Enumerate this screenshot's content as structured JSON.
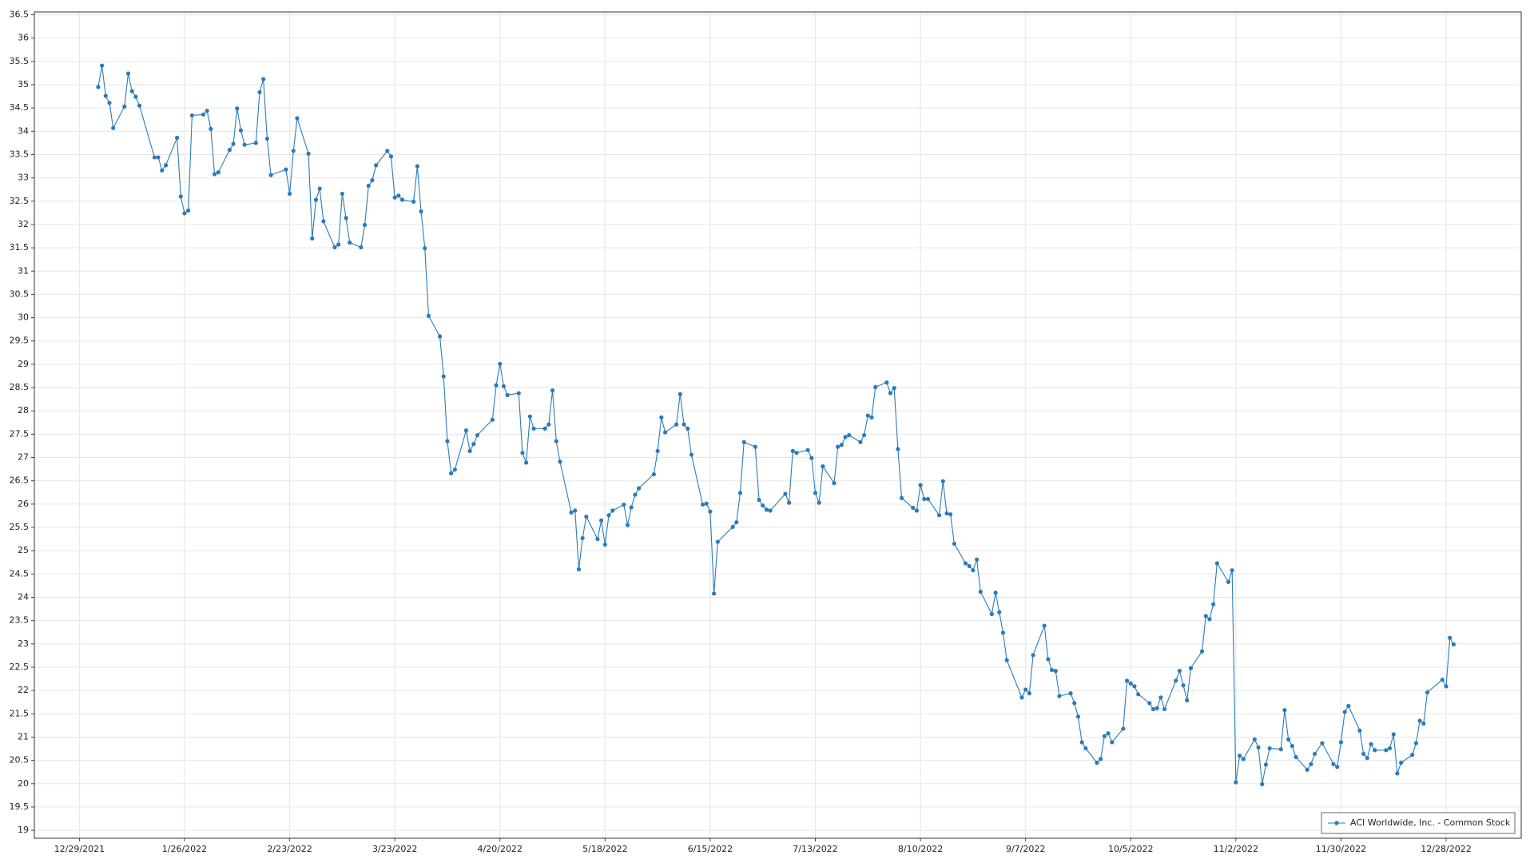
{
  "chart_data": {
    "type": "line",
    "x": [
      "1/3/2022",
      "1/4/2022",
      "1/5/2022",
      "1/6/2022",
      "1/7/2022",
      "1/10/2022",
      "1/11/2022",
      "1/12/2022",
      "1/13/2022",
      "1/14/2022",
      "1/18/2022",
      "1/19/2022",
      "1/20/2022",
      "1/21/2022",
      "1/24/2022",
      "1/25/2022",
      "1/26/2022",
      "1/27/2022",
      "1/28/2022",
      "1/31/2022",
      "2/1/2022",
      "2/2/2022",
      "2/3/2022",
      "2/4/2022",
      "2/7/2022",
      "2/8/2022",
      "2/9/2022",
      "2/10/2022",
      "2/11/2022",
      "2/14/2022",
      "2/15/2022",
      "2/16/2022",
      "2/17/2022",
      "2/18/2022",
      "2/22/2022",
      "2/23/2022",
      "2/24/2022",
      "2/25/2022",
      "2/28/2022",
      "3/1/2022",
      "3/2/2022",
      "3/3/2022",
      "3/4/2022",
      "3/7/2022",
      "3/8/2022",
      "3/9/2022",
      "3/10/2022",
      "3/11/2022",
      "3/14/2022",
      "3/15/2022",
      "3/16/2022",
      "3/17/2022",
      "3/18/2022",
      "3/21/2022",
      "3/22/2022",
      "3/23/2022",
      "3/24/2022",
      "3/25/2022",
      "3/28/2022",
      "3/29/2022",
      "3/30/2022",
      "3/31/2022",
      "4/1/2022",
      "4/4/2022",
      "4/5/2022",
      "4/6/2022",
      "4/7/2022",
      "4/8/2022",
      "4/11/2022",
      "4/12/2022",
      "4/13/2022",
      "4/14/2022",
      "4/18/2022",
      "4/19/2022",
      "4/20/2022",
      "4/21/2022",
      "4/22/2022",
      "4/25/2022",
      "4/26/2022",
      "4/27/2022",
      "4/28/2022",
      "4/29/2022",
      "5/2/2022",
      "5/3/2022",
      "5/4/2022",
      "5/5/2022",
      "5/6/2022",
      "5/9/2022",
      "5/10/2022",
      "5/11/2022",
      "5/12/2022",
      "5/13/2022",
      "5/16/2022",
      "5/17/2022",
      "5/18/2022",
      "5/19/2022",
      "5/20/2022",
      "5/23/2022",
      "5/24/2022",
      "5/25/2022",
      "5/26/2022",
      "5/27/2022",
      "5/31/2022",
      "6/1/2022",
      "6/2/2022",
      "6/3/2022",
      "6/6/2022",
      "6/7/2022",
      "6/8/2022",
      "6/9/2022",
      "6/10/2022",
      "6/13/2022",
      "6/14/2022",
      "6/15/2022",
      "6/16/2022",
      "6/17/2022",
      "6/21/2022",
      "6/22/2022",
      "6/23/2022",
      "6/24/2022",
      "6/27/2022",
      "6/28/2022",
      "6/29/2022",
      "6/30/2022",
      "7/1/2022",
      "7/5/2022",
      "7/6/2022",
      "7/7/2022",
      "7/8/2022",
      "7/11/2022",
      "7/12/2022",
      "7/13/2022",
      "7/14/2022",
      "7/15/2022",
      "7/18/2022",
      "7/19/2022",
      "7/20/2022",
      "7/21/2022",
      "7/22/2022",
      "7/25/2022",
      "7/26/2022",
      "7/27/2022",
      "7/28/2022",
      "7/29/2022",
      "8/1/2022",
      "8/2/2022",
      "8/3/2022",
      "8/4/2022",
      "8/5/2022",
      "8/8/2022",
      "8/9/2022",
      "8/10/2022",
      "8/11/2022",
      "8/12/2022",
      "8/15/2022",
      "8/16/2022",
      "8/17/2022",
      "8/18/2022",
      "8/19/2022",
      "8/22/2022",
      "8/23/2022",
      "8/24/2022",
      "8/25/2022",
      "8/26/2022",
      "8/29/2022",
      "8/30/2022",
      "8/31/2022",
      "9/1/2022",
      "9/2/2022",
      "9/6/2022",
      "9/7/2022",
      "9/8/2022",
      "9/9/2022",
      "9/12/2022",
      "9/13/2022",
      "9/14/2022",
      "9/15/2022",
      "9/16/2022",
      "9/19/2022",
      "9/20/2022",
      "9/21/2022",
      "9/22/2022",
      "9/23/2022",
      "9/26/2022",
      "9/27/2022",
      "9/28/2022",
      "9/29/2022",
      "9/30/2022",
      "10/3/2022",
      "10/4/2022",
      "10/5/2022",
      "10/6/2022",
      "10/7/2022",
      "10/10/2022",
      "10/11/2022",
      "10/12/2022",
      "10/13/2022",
      "10/14/2022",
      "10/17/2022",
      "10/18/2022",
      "10/19/2022",
      "10/20/2022",
      "10/21/2022",
      "10/24/2022",
      "10/25/2022",
      "10/26/2022",
      "10/27/2022",
      "10/28/2022",
      "10/31/2022",
      "11/1/2022",
      "11/2/2022",
      "11/3/2022",
      "11/4/2022",
      "11/7/2022",
      "11/8/2022",
      "11/9/2022",
      "11/10/2022",
      "11/11/2022",
      "11/14/2022",
      "11/15/2022",
      "11/16/2022",
      "11/17/2022",
      "11/18/2022",
      "11/21/2022",
      "11/22/2022",
      "11/23/2022",
      "11/25/2022",
      "11/28/2022",
      "11/29/2022",
      "11/30/2022",
      "12/1/2022",
      "12/2/2022",
      "12/5/2022",
      "12/6/2022",
      "12/7/2022",
      "12/8/2022",
      "12/9/2022",
      "12/12/2022",
      "12/13/2022",
      "12/14/2022",
      "12/15/2022",
      "12/16/2022",
      "12/19/2022",
      "12/20/2022",
      "12/21/2022",
      "12/22/2022",
      "12/23/2022",
      "12/27/2022",
      "12/28/2022",
      "12/29/2022",
      "12/30/2022"
    ],
    "series": [
      {
        "name": "ACI Worldwide, Inc. - Common Stock",
        "color": "#2b7bba",
        "values": [
          34.95,
          35.41,
          34.76,
          34.61,
          34.07,
          34.53,
          35.24,
          34.86,
          34.74,
          34.55,
          33.44,
          33.44,
          33.16,
          33.27,
          33.86,
          32.6,
          32.24,
          32.3,
          34.34,
          34.36,
          34.44,
          34.05,
          33.08,
          33.12,
          33.6,
          33.73,
          34.49,
          34.02,
          33.71,
          33.75,
          34.84,
          35.12,
          33.84,
          33.06,
          33.18,
          32.66,
          33.58,
          34.28,
          33.52,
          31.7,
          32.53,
          32.77,
          32.07,
          31.51,
          31.57,
          32.66,
          32.14,
          31.61,
          31.51,
          31.99,
          32.83,
          32.95,
          33.27,
          33.58,
          33.46,
          32.58,
          32.62,
          32.53,
          32.49,
          33.25,
          32.28,
          31.49,
          30.04,
          29.6,
          28.74,
          27.35,
          26.66,
          26.74,
          27.58,
          27.14,
          27.29,
          27.48,
          27.81,
          28.55,
          29.01,
          28.53,
          28.34,
          28.38,
          27.1,
          26.89,
          27.88,
          27.62,
          27.62,
          27.71,
          28.44,
          27.35,
          26.91,
          25.82,
          25.86,
          24.6,
          25.27,
          25.73,
          25.25,
          25.65,
          25.13,
          25.76,
          25.86,
          25.99,
          25.55,
          25.93,
          26.2,
          26.34,
          26.64,
          27.14,
          27.86,
          27.54,
          27.71,
          28.36,
          27.71,
          27.62,
          27.06,
          25.99,
          26.01,
          25.84,
          24.08,
          25.19,
          25.51,
          25.61,
          26.24,
          27.33,
          27.23,
          26.09,
          25.97,
          25.88,
          25.86,
          26.22,
          26.03,
          27.14,
          27.1,
          27.16,
          26.99,
          26.24,
          26.03,
          26.81,
          26.45,
          27.23,
          27.27,
          27.44,
          27.48,
          27.33,
          27.48,
          27.9,
          27.86,
          28.51,
          28.61,
          28.38,
          28.49,
          27.18,
          26.13,
          25.92,
          25.86,
          26.41,
          26.11,
          26.11,
          25.76,
          26.49,
          25.8,
          25.78,
          25.15,
          24.73,
          24.67,
          24.58,
          24.81,
          24.12,
          23.64,
          24.1,
          23.68,
          23.24,
          22.65,
          21.85,
          22.02,
          21.94,
          22.76,
          23.39,
          22.67,
          22.44,
          22.42,
          21.88,
          21.94,
          21.73,
          21.44,
          20.89,
          20.76,
          20.45,
          20.53,
          21.02,
          21.08,
          20.89,
          21.18,
          22.21,
          22.15,
          22.09,
          21.92,
          21.73,
          21.6,
          21.62,
          21.85,
          21.6,
          22.21,
          22.42,
          22.11,
          21.79,
          22.48,
          22.84,
          23.6,
          23.53,
          23.85,
          24.73,
          24.33,
          24.58,
          20.03,
          20.6,
          20.53,
          20.95,
          20.78,
          19.99,
          20.41,
          20.76,
          20.74,
          21.58,
          20.95,
          20.81,
          20.57,
          20.3,
          20.42,
          20.64,
          20.87,
          20.42,
          20.36,
          20.89,
          21.54,
          21.67,
          21.14,
          20.64,
          20.55,
          20.85,
          20.72,
          20.72,
          20.76,
          21.06,
          20.22,
          20.45,
          20.62,
          20.87,
          21.35,
          21.29,
          21.96,
          22.23,
          22.09,
          23.13,
          22.99
        ]
      }
    ],
    "xlim": [
      "12/17/2021",
      "1/17/2023"
    ],
    "xticks": [
      "12/29/2021",
      "1/26/2022",
      "2/23/2022",
      "3/23/2022",
      "4/20/2022",
      "5/18/2022",
      "6/15/2022",
      "7/13/2022",
      "8/10/2022",
      "9/7/2022",
      "10/5/2022",
      "11/2/2022",
      "11/30/2022",
      "12/28/2022"
    ],
    "ylim": [
      18.83,
      36.56
    ],
    "yticks": [
      19,
      19.5,
      20,
      20.5,
      21,
      21.5,
      22,
      22.5,
      23,
      23.5,
      24,
      24.5,
      25,
      25.5,
      26,
      26.5,
      27,
      27.5,
      28,
      28.5,
      29,
      29.5,
      30,
      30.5,
      31,
      31.5,
      32,
      32.5,
      33,
      33.5,
      34,
      34.5,
      35,
      35.5,
      36,
      36.5
    ],
    "grid": true,
    "legend": "bottom-right"
  }
}
